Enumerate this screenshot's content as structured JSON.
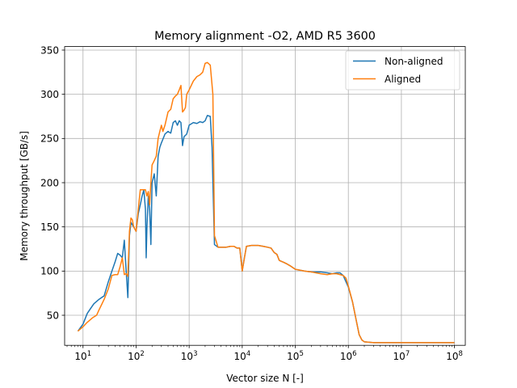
{
  "chart_data": {
    "type": "line",
    "title": "Memory alignment -O2, AMD R5 3600",
    "xlabel": "Vector size N [-]",
    "ylabel": "Memory throughput [GB/s]",
    "xscale": "log",
    "xlim": [
      4.5,
      160000000
    ],
    "ylim": [
      16,
      354
    ],
    "grid": true,
    "legend_position": "upper right",
    "x_ticks": [
      {
        "value": 10,
        "base": "10",
        "exp": "1"
      },
      {
        "value": 100,
        "base": "10",
        "exp": "2"
      },
      {
        "value": 1000,
        "base": "10",
        "exp": "3"
      },
      {
        "value": 10000,
        "base": "10",
        "exp": "4"
      },
      {
        "value": 100000,
        "base": "10",
        "exp": "5"
      },
      {
        "value": 1000000,
        "base": "10",
        "exp": "6"
      },
      {
        "value": 10000000,
        "base": "10",
        "exp": "7"
      },
      {
        "value": 100000000,
        "base": "10",
        "exp": "8"
      }
    ],
    "y_ticks": [
      50,
      100,
      150,
      200,
      250,
      300,
      350
    ],
    "series": [
      {
        "name": "Non-aligned",
        "color": "#1f77b4",
        "points": [
          [
            8,
            32
          ],
          [
            10,
            40
          ],
          [
            12,
            52
          ],
          [
            14,
            58
          ],
          [
            16,
            63
          ],
          [
            20,
            68
          ],
          [
            25,
            72
          ],
          [
            30,
            88
          ],
          [
            35,
            100
          ],
          [
            40,
            110
          ],
          [
            45,
            120
          ],
          [
            50,
            118
          ],
          [
            55,
            115
          ],
          [
            60,
            135
          ],
          [
            65,
            100
          ],
          [
            70,
            70
          ],
          [
            75,
            140
          ],
          [
            80,
            155
          ],
          [
            90,
            150
          ],
          [
            100,
            145
          ],
          [
            110,
            165
          ],
          [
            120,
            175
          ],
          [
            130,
            185
          ],
          [
            140,
            192
          ],
          [
            150,
            170
          ],
          [
            155,
            115
          ],
          [
            160,
            150
          ],
          [
            170,
            185
          ],
          [
            180,
            170
          ],
          [
            190,
            130
          ],
          [
            200,
            200
          ],
          [
            220,
            210
          ],
          [
            240,
            185
          ],
          [
            260,
            230
          ],
          [
            280,
            240
          ],
          [
            300,
            245
          ],
          [
            350,
            255
          ],
          [
            400,
            258
          ],
          [
            450,
            256
          ],
          [
            500,
            268
          ],
          [
            550,
            270
          ],
          [
            600,
            265
          ],
          [
            650,
            270
          ],
          [
            700,
            268
          ],
          [
            750,
            242
          ],
          [
            800,
            252
          ],
          [
            900,
            255
          ],
          [
            1000,
            265
          ],
          [
            1200,
            268
          ],
          [
            1400,
            267
          ],
          [
            1600,
            269
          ],
          [
            1800,
            268
          ],
          [
            2000,
            270
          ],
          [
            2200,
            276
          ],
          [
            2500,
            275
          ],
          [
            2700,
            240
          ],
          [
            3000,
            130
          ],
          [
            3500,
            127
          ],
          [
            4000,
            127
          ],
          [
            5000,
            127
          ],
          [
            6000,
            128
          ],
          [
            7000,
            128
          ],
          [
            8000,
            126
          ],
          [
            9000,
            126
          ],
          [
            10000,
            100
          ],
          [
            11000,
            115
          ],
          [
            12000,
            128
          ],
          [
            15000,
            129
          ],
          [
            20000,
            129
          ],
          [
            25000,
            128
          ],
          [
            30000,
            127
          ],
          [
            35000,
            126
          ],
          [
            40000,
            121
          ],
          [
            45000,
            119
          ],
          [
            50000,
            112
          ],
          [
            60000,
            110
          ],
          [
            70000,
            108
          ],
          [
            80000,
            106
          ],
          [
            100000,
            102
          ],
          [
            150000,
            100
          ],
          [
            200000,
            99
          ],
          [
            300000,
            99
          ],
          [
            400000,
            98
          ],
          [
            500000,
            97
          ],
          [
            600000,
            98
          ],
          [
            700000,
            98
          ],
          [
            800000,
            95
          ],
          [
            900000,
            88
          ],
          [
            1000000,
            82
          ],
          [
            1200000,
            65
          ],
          [
            1400000,
            45
          ],
          [
            1600000,
            28
          ],
          [
            1800000,
            22
          ],
          [
            2000000,
            20
          ],
          [
            3000000,
            19
          ],
          [
            5000000,
            19
          ],
          [
            10000000,
            19
          ],
          [
            20000000,
            19
          ],
          [
            50000000,
            19
          ],
          [
            100000000,
            19
          ]
        ]
      },
      {
        "name": "Aligned",
        "color": "#ff7f0e",
        "points": [
          [
            8,
            32
          ],
          [
            10,
            37
          ],
          [
            12,
            42
          ],
          [
            15,
            47
          ],
          [
            18,
            50
          ],
          [
            20,
            56
          ],
          [
            25,
            68
          ],
          [
            30,
            80
          ],
          [
            35,
            95
          ],
          [
            40,
            96
          ],
          [
            45,
            96
          ],
          [
            50,
            105
          ],
          [
            55,
            115
          ],
          [
            60,
            96
          ],
          [
            65,
            97
          ],
          [
            70,
            94
          ],
          [
            75,
            145
          ],
          [
            80,
            160
          ],
          [
            85,
            158
          ],
          [
            90,
            150
          ],
          [
            100,
            145
          ],
          [
            110,
            170
          ],
          [
            120,
            192
          ],
          [
            130,
            192
          ],
          [
            150,
            192
          ],
          [
            160,
            185
          ],
          [
            170,
            190
          ],
          [
            180,
            175
          ],
          [
            190,
            200
          ],
          [
            200,
            220
          ],
          [
            220,
            225
          ],
          [
            240,
            230
          ],
          [
            260,
            250
          ],
          [
            280,
            258
          ],
          [
            300,
            265
          ],
          [
            320,
            258
          ],
          [
            350,
            265
          ],
          [
            400,
            280
          ],
          [
            450,
            283
          ],
          [
            500,
            295
          ],
          [
            550,
            298
          ],
          [
            600,
            300
          ],
          [
            650,
            305
          ],
          [
            700,
            310
          ],
          [
            750,
            280
          ],
          [
            800,
            282
          ],
          [
            850,
            285
          ],
          [
            900,
            300
          ],
          [
            1000,
            305
          ],
          [
            1200,
            315
          ],
          [
            1400,
            320
          ],
          [
            1600,
            322
          ],
          [
            1800,
            325
          ],
          [
            2000,
            335
          ],
          [
            2200,
            336
          ],
          [
            2500,
            333
          ],
          [
            2800,
            300
          ],
          [
            3000,
            140
          ],
          [
            3500,
            127
          ],
          [
            4000,
            127
          ],
          [
            5000,
            127
          ],
          [
            6000,
            128
          ],
          [
            7000,
            128
          ],
          [
            8000,
            126
          ],
          [
            9000,
            126
          ],
          [
            10000,
            100
          ],
          [
            11000,
            115
          ],
          [
            12000,
            128
          ],
          [
            15000,
            129
          ],
          [
            20000,
            129
          ],
          [
            25000,
            128
          ],
          [
            30000,
            127
          ],
          [
            35000,
            126
          ],
          [
            40000,
            121
          ],
          [
            45000,
            119
          ],
          [
            50000,
            112
          ],
          [
            60000,
            110
          ],
          [
            70000,
            108
          ],
          [
            80000,
            106
          ],
          [
            100000,
            102
          ],
          [
            150000,
            100
          ],
          [
            200000,
            99
          ],
          [
            300000,
            97
          ],
          [
            400000,
            96
          ],
          [
            500000,
            97
          ],
          [
            600000,
            97
          ],
          [
            700000,
            96
          ],
          [
            800000,
            95
          ],
          [
            900000,
            92
          ],
          [
            1000000,
            83
          ],
          [
            1200000,
            65
          ],
          [
            1400000,
            45
          ],
          [
            1600000,
            28
          ],
          [
            1800000,
            22
          ],
          [
            2000000,
            20
          ],
          [
            3000000,
            19
          ],
          [
            5000000,
            19
          ],
          [
            10000000,
            19
          ],
          [
            20000000,
            19
          ],
          [
            50000000,
            19
          ],
          [
            100000000,
            19
          ]
        ]
      }
    ]
  }
}
